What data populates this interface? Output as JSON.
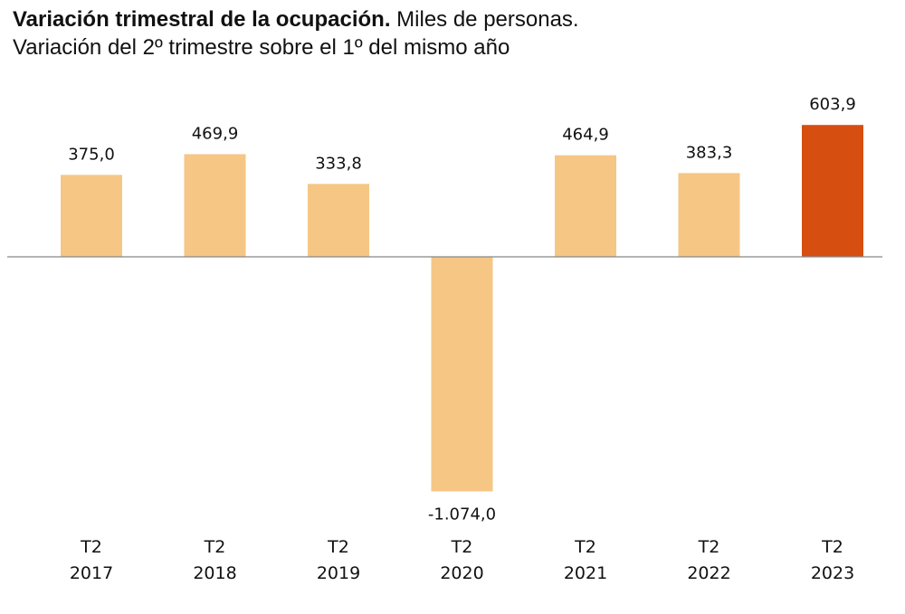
{
  "title": {
    "bold": "Variación trimestral de la ocupación.",
    "rest": "Miles de personas.",
    "subtitle": "Variación del 2º trimestre sobre el 1º del mismo año"
  },
  "colors": {
    "bar": "#F5C684",
    "highlight": "#D64F11",
    "axis": "#888888"
  },
  "chart_data": {
    "type": "bar",
    "title": "Variación trimestral de la ocupación. Miles de personas.",
    "subtitle": "Variación del 2º trimestre sobre el 1º del mismo año",
    "categories": [
      "T2 2017",
      "T2 2018",
      "T2 2019",
      "T2 2020",
      "T2 2021",
      "T2 2022",
      "T2 2023"
    ],
    "category_lines": [
      [
        "T2",
        "2017"
      ],
      [
        "T2",
        "2018"
      ],
      [
        "T2",
        "2019"
      ],
      [
        "T2",
        "2020"
      ],
      [
        "T2",
        "2021"
      ],
      [
        "T2",
        "2022"
      ],
      [
        "T2",
        "2023"
      ]
    ],
    "values": [
      375.0,
      469.9,
      333.8,
      -1074.0,
      464.9,
      383.3,
      603.9
    ],
    "value_labels": [
      "375,0",
      "469,9",
      "333,8",
      "-1.074,0",
      "464,9",
      "383,3",
      "603,9"
    ],
    "highlight_index": 6,
    "xlabel": "",
    "ylabel": "",
    "grid": false,
    "legend": "none"
  }
}
